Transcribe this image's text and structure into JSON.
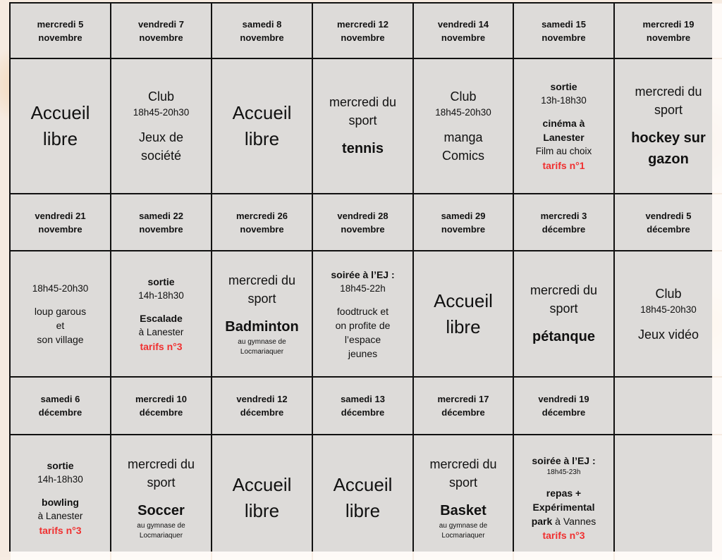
{
  "accent_red": "#f03030",
  "rows": [
    {
      "type": "header",
      "cells": [
        [
          "mercredi 5",
          "novembre"
        ],
        [
          "vendredi 7",
          "novembre"
        ],
        [
          "samedi 8",
          "novembre"
        ],
        [
          "mercredi 12",
          "novembre"
        ],
        [
          "vendredi 14",
          "novembre"
        ],
        [
          "samedi 15",
          "novembre"
        ],
        [
          "mercredi 19",
          "novembre"
        ]
      ]
    },
    {
      "type": "content",
      "cells": [
        [
          [
            {
              "t": "Accueil",
              "s": "big"
            },
            {
              "t": "libre",
              "s": "big"
            }
          ]
        ],
        [
          [
            {
              "t": "Club",
              "s": "med"
            },
            {
              "t": "18h45-20h30",
              "s": "small"
            }
          ],
          [
            {
              "t": "Jeux de",
              "s": "med"
            },
            {
              "t": "société",
              "s": "med"
            }
          ]
        ],
        [
          [
            {
              "t": "Accueil",
              "s": "big"
            },
            {
              "t": "libre",
              "s": "big"
            }
          ]
        ],
        [
          [
            {
              "t": "mercredi du",
              "s": "med"
            },
            {
              "t": "sport",
              "s": "med"
            }
          ],
          [
            {
              "t": "tennis",
              "s": "boldbig"
            }
          ]
        ],
        [
          [
            {
              "t": "Club",
              "s": "med"
            },
            {
              "t": "18h45-20h30",
              "s": "small"
            }
          ],
          [
            {
              "t": "manga",
              "s": "med"
            },
            {
              "t": "Comics",
              "s": "med"
            }
          ]
        ],
        [
          [
            {
              "t": "sortie",
              "s": "bold"
            },
            {
              "t": "13h-18h30",
              "s": "small"
            }
          ],
          [
            {
              "t": "cinéma à",
              "s": "bold"
            },
            {
              "t": "Lanester",
              "s": "bold"
            },
            {
              "t": "Film au choix",
              "s": "small"
            },
            {
              "t": "tarifs n°1",
              "s": "red"
            }
          ]
        ],
        [
          [
            {
              "t": "mercredi du",
              "s": "med"
            },
            {
              "t": "sport",
              "s": "med"
            }
          ],
          [
            {
              "t": "hockey sur",
              "s": "boldbig"
            },
            {
              "t": "gazon",
              "s": "boldbig"
            }
          ]
        ]
      ]
    },
    {
      "type": "header",
      "cells": [
        [
          "vendredi 21",
          "novembre"
        ],
        [
          "samedi 22",
          "novembre"
        ],
        [
          "mercredi 26",
          "novembre"
        ],
        [
          "vendredi 28",
          "novembre"
        ],
        [
          "samedi 29",
          "novembre"
        ],
        [
          "mercredi 3",
          "décembre"
        ],
        [
          "vendredi 5",
          "décembre"
        ]
      ]
    },
    {
      "type": "content",
      "cells": [
        [
          [
            {
              "t": "18h45-20h30",
              "s": "small"
            }
          ],
          [
            {
              "t": "loup garous",
              "s": "reg"
            },
            {
              "t": "et",
              "s": "reg"
            },
            {
              "t": "son village",
              "s": "reg"
            }
          ]
        ],
        [
          [
            {
              "t": "sortie",
              "s": "bold"
            },
            {
              "t": "14h-18h30",
              "s": "small"
            }
          ],
          [
            {
              "t": "Escalade",
              "s": "bold"
            },
            {
              "t": "à Lanester",
              "s": "small"
            },
            {
              "t": "tarifs n°3",
              "s": "red"
            }
          ]
        ],
        [
          [
            {
              "t": "mercredi du",
              "s": "med"
            },
            {
              "t": "sport",
              "s": "med"
            }
          ],
          [
            {
              "t": "Badminton",
              "s": "boldbig"
            },
            {
              "t": "au gymnase de",
              "s": "tiny"
            },
            {
              "t": "Locmariaquer",
              "s": "tiny"
            }
          ]
        ],
        [
          [
            {
              "t": "soirée à l’EJ :",
              "s": "bold"
            },
            {
              "t": "18h45-22h",
              "s": "small"
            }
          ],
          [
            {
              "t": "foodtruck et",
              "s": "reg"
            },
            {
              "t": "on profite de",
              "s": "reg"
            },
            {
              "t": "l’espace",
              "s": "reg"
            },
            {
              "t": "jeunes",
              "s": "reg"
            }
          ]
        ],
        [
          [
            {
              "t": "Accueil",
              "s": "big"
            },
            {
              "t": "libre",
              "s": "big"
            }
          ]
        ],
        [
          [
            {
              "t": "mercredi du",
              "s": "med"
            },
            {
              "t": "sport",
              "s": "med"
            }
          ],
          [
            {
              "t": "pétanque",
              "s": "boldbig"
            }
          ]
        ],
        [
          [
            {
              "t": "Club",
              "s": "med"
            },
            {
              "t": "18h45-20h30",
              "s": "small"
            }
          ],
          [
            {
              "t": "Jeux vidéo",
              "s": "med"
            }
          ]
        ]
      ]
    },
    {
      "type": "header",
      "cells": [
        [
          "samedi 6",
          "décembre"
        ],
        [
          "mercredi 10",
          "décembre"
        ],
        [
          "vendredi 12",
          "décembre"
        ],
        [
          "samedi 13",
          "décembre"
        ],
        [
          "mercredi 17",
          "décembre"
        ],
        [
          "vendredi 19",
          "décembre"
        ],
        []
      ]
    },
    {
      "type": "content",
      "cells": [
        [
          [
            {
              "t": "sortie",
              "s": "bold"
            },
            {
              "t": "14h-18h30",
              "s": "small"
            }
          ],
          [
            {
              "t": "bowling",
              "s": "bold"
            },
            {
              "t": "à Lanester",
              "s": "small"
            },
            {
              "t": "tarifs n°3",
              "s": "red"
            }
          ]
        ],
        [
          [
            {
              "t": "mercredi du",
              "s": "med"
            },
            {
              "t": "sport",
              "s": "med"
            }
          ],
          [
            {
              "t": "Soccer",
              "s": "boldbig"
            },
            {
              "t": "au gymnase de",
              "s": "tiny"
            },
            {
              "t": "Locmariaquer",
              "s": "tiny"
            }
          ]
        ],
        [
          [
            {
              "t": "Accueil",
              "s": "big"
            },
            {
              "t": "libre",
              "s": "big"
            }
          ]
        ],
        [
          [
            {
              "t": "Accueil",
              "s": "big"
            },
            {
              "t": "libre",
              "s": "big"
            }
          ]
        ],
        [
          [
            {
              "t": "mercredi du",
              "s": "med"
            },
            {
              "t": "sport",
              "s": "med"
            }
          ],
          [
            {
              "t": "Basket",
              "s": "boldbig"
            },
            {
              "t": "au gymnase de",
              "s": "tiny"
            },
            {
              "t": "Locmariaquer",
              "s": "tiny"
            }
          ]
        ],
        [
          [
            {
              "t": "soirée à l’EJ :",
              "s": "bold"
            },
            {
              "t": "18h45-23h",
              "s": "tiny"
            }
          ],
          [
            {
              "t": "repas +",
              "s": "bold"
            },
            {
              "t": "Expérimental",
              "s": "bold"
            },
            {
              "t": "park",
              "s": "bold",
              "inline": {
                "t": " à Vannes",
                "s": "reg"
              }
            },
            {
              "t": "tarifs n°3",
              "s": "red"
            }
          ]
        ],
        []
      ]
    }
  ]
}
